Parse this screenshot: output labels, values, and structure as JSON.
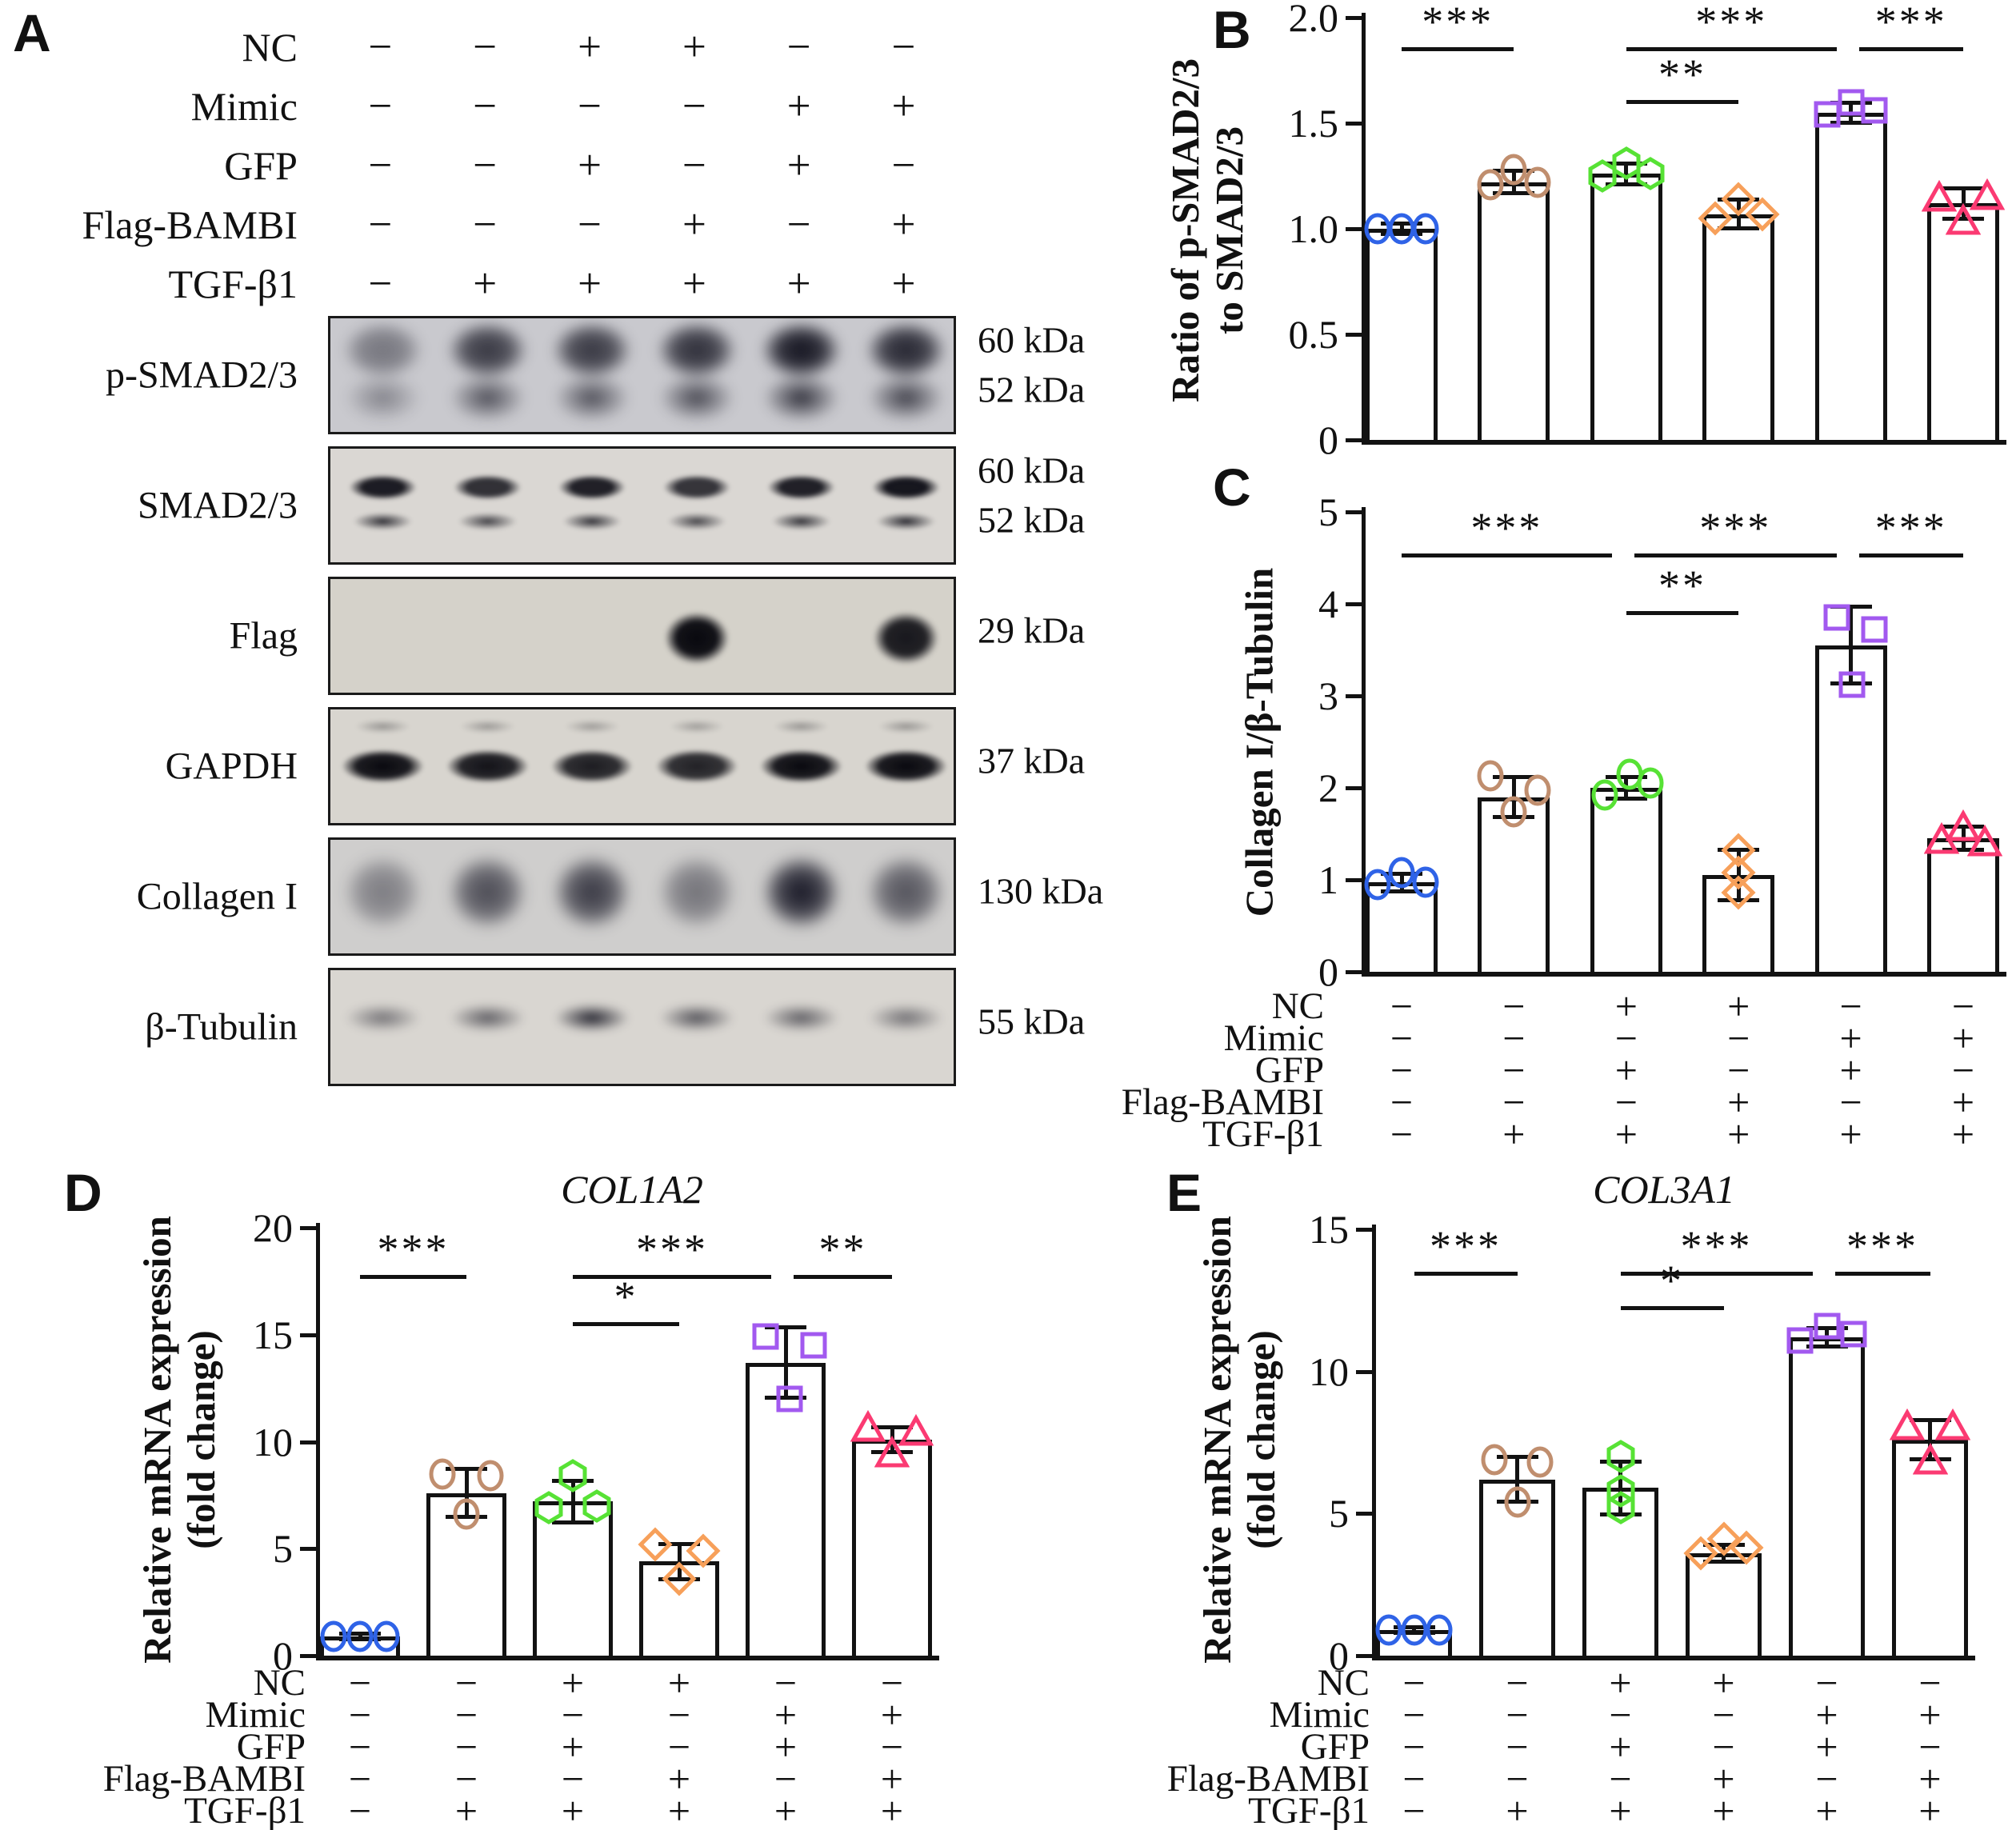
{
  "panel_letters": {
    "a": "A",
    "b": "B",
    "c": "C",
    "d": "D",
    "e": "E"
  },
  "conditions": {
    "rows": [
      {
        "label": "NC",
        "signs": [
          "−",
          "−",
          "+",
          "+",
          "−",
          "−"
        ]
      },
      {
        "label": "Mimic",
        "signs": [
          "−",
          "−",
          "−",
          "−",
          "+",
          "+"
        ]
      },
      {
        "label": "GFP",
        "signs": [
          "−",
          "−",
          "+",
          "−",
          "+",
          "−"
        ]
      },
      {
        "label": "Flag-BAMBI",
        "signs": [
          "−",
          "−",
          "−",
          "+",
          "−",
          "+"
        ]
      },
      {
        "label": "TGF-β1",
        "signs": [
          "−",
          "+",
          "+",
          "+",
          "+",
          "+"
        ]
      }
    ]
  },
  "western_blots": {
    "rows": [
      {
        "label": "p-SMAD2/3",
        "kda": [
          "60 kDa",
          "52 kDa"
        ],
        "style": "smear",
        "bg": "#c9c9ce",
        "lane_intensities": [
          0.45,
          0.8,
          0.8,
          0.85,
          1.0,
          0.9
        ]
      },
      {
        "label": "SMAD2/3",
        "kda": [
          "60 kDa",
          "52 kDa"
        ],
        "style": "double",
        "bg": "#dad7d3",
        "lane_intensities": [
          0.92,
          0.82,
          0.9,
          0.8,
          0.9,
          0.95
        ]
      },
      {
        "label": "Flag",
        "kda": [
          "29 kDa"
        ],
        "style": "blob",
        "bg": "#d5d2ca",
        "lane_intensities": [
          0,
          0,
          0,
          1.0,
          0,
          0.92
        ]
      },
      {
        "label": "GAPDH",
        "kda": [
          "37 kDa"
        ],
        "style": "single-thick",
        "bg": "#d8d5cf",
        "lane_intensities": [
          1.0,
          0.95,
          0.9,
          0.88,
          1.0,
          1.0
        ]
      },
      {
        "label": "Collagen I",
        "kda": [
          "130 kDa"
        ],
        "style": "smear-tall",
        "bg": "#cfcecd",
        "lane_intensities": [
          0.45,
          0.72,
          0.82,
          0.5,
          1.0,
          0.68
        ]
      },
      {
        "label": "β-Tubulin",
        "kda": [
          "55 kDa"
        ],
        "style": "single",
        "bg": "#d9d6d1",
        "lane_intensities": [
          0.5,
          0.62,
          0.92,
          0.68,
          0.62,
          0.52
        ]
      }
    ]
  },
  "chart_data": [
    {
      "id": "B",
      "type": "bar",
      "ylabel_lines": [
        "Ratio of p-SMAD2/3",
        "to SMAD2/3"
      ],
      "ylim": [
        0,
        2.0
      ],
      "yticks": [
        {
          "v": 0,
          "label": "0"
        },
        {
          "v": 0.5,
          "label": "0.5"
        },
        {
          "v": 1.0,
          "label": "1.0"
        },
        {
          "v": 1.5,
          "label": "1.5"
        },
        {
          "v": 2.0,
          "label": "2.0"
        }
      ],
      "bars": [
        {
          "mean": 1.0,
          "err": 0.025,
          "marker": "circle",
          "color": "#2f63e7",
          "points": [
            {
              "dx": -0.33,
              "v": 1.0
            },
            {
              "dx": 0,
              "v": 1.0
            },
            {
              "dx": 0.33,
              "v": 1.0
            }
          ]
        },
        {
          "mean": 1.22,
          "err": 0.055,
          "marker": "circle",
          "color": "#c08e6e",
          "points": [
            {
              "dx": -0.33,
              "v": 1.21
            },
            {
              "dx": 0,
              "v": 1.28
            },
            {
              "dx": 0.33,
              "v": 1.22
            }
          ]
        },
        {
          "mean": 1.26,
          "err": 0.05,
          "marker": "hexagon",
          "color": "#57e235",
          "points": [
            {
              "dx": -0.33,
              "v": 1.25
            },
            {
              "dx": 0,
              "v": 1.31
            },
            {
              "dx": 0.33,
              "v": 1.26
            }
          ]
        },
        {
          "mean": 1.07,
          "err": 0.07,
          "marker": "diamond",
          "color": "#f7a05a",
          "points": [
            {
              "dx": -0.33,
              "v": 1.05
            },
            {
              "dx": 0,
              "v": 1.14
            },
            {
              "dx": 0.33,
              "v": 1.07
            }
          ]
        },
        {
          "mean": 1.55,
          "err": 0.05,
          "marker": "square",
          "color": "#a259ef",
          "points": [
            {
              "dx": -0.33,
              "v": 1.54
            },
            {
              "dx": 0,
              "v": 1.6
            },
            {
              "dx": 0.33,
              "v": 1.56
            }
          ]
        },
        {
          "mean": 1.12,
          "err": 0.075,
          "marker": "triangle",
          "color": "#fb3a72",
          "points": [
            {
              "dx": -0.33,
              "v": 1.15
            },
            {
              "dx": 0,
              "v": 1.04
            },
            {
              "dx": 0.33,
              "v": 1.16
            }
          ]
        }
      ],
      "sig": [
        {
          "from": 0,
          "to": 1,
          "label": "***",
          "y": 1.86
        },
        {
          "from": 2,
          "to": 4,
          "label": "***",
          "y": 1.86
        },
        {
          "from": 4,
          "to": 5,
          "label": "***",
          "y": 1.86
        },
        {
          "from": 2,
          "to": 3,
          "label": "**",
          "y": 1.61
        }
      ],
      "show_conditions": false
    },
    {
      "id": "C",
      "type": "bar",
      "ylabel_lines": [
        "Collagen I/β-Tubulin"
      ],
      "ylim": [
        0,
        5
      ],
      "yticks": [
        {
          "v": 0,
          "label": "0"
        },
        {
          "v": 1,
          "label": "1"
        },
        {
          "v": 2,
          "label": "2"
        },
        {
          "v": 3,
          "label": "3"
        },
        {
          "v": 4,
          "label": "4"
        },
        {
          "v": 5,
          "label": "5"
        }
      ],
      "bars": [
        {
          "mean": 0.97,
          "err": 0.1,
          "marker": "circle",
          "color": "#2f63e7",
          "points": [
            {
              "dx": -0.33,
              "v": 0.95
            },
            {
              "dx": 0,
              "v": 1.08
            },
            {
              "dx": 0.33,
              "v": 0.97
            }
          ]
        },
        {
          "mean": 1.9,
          "err": 0.22,
          "marker": "circle",
          "color": "#c08e6e",
          "points": [
            {
              "dx": -0.33,
              "v": 2.13
            },
            {
              "dx": 0,
              "v": 1.74
            },
            {
              "dx": 0.33,
              "v": 1.97
            }
          ]
        },
        {
          "mean": 2.0,
          "err": 0.12,
          "marker": "circle",
          "color": "#57e235",
          "points": [
            {
              "dx": -0.3,
              "v": 1.92
            },
            {
              "dx": 0.05,
              "v": 2.15
            },
            {
              "dx": 0.33,
              "v": 2.05
            }
          ]
        },
        {
          "mean": 1.05,
          "err": 0.28,
          "marker": "diamond",
          "color": "#f7a05a",
          "points": [
            {
              "dx": 0,
              "v": 1.32
            },
            {
              "dx": 0,
              "v": 1.08
            },
            {
              "dx": 0,
              "v": 0.86
            }
          ]
        },
        {
          "mean": 3.55,
          "err": 0.42,
          "marker": "square",
          "color": "#a259ef",
          "points": [
            {
              "dx": -0.2,
              "v": 3.85
            },
            {
              "dx": 0.02,
              "v": 3.12
            },
            {
              "dx": 0.33,
              "v": 3.72
            }
          ]
        },
        {
          "mean": 1.45,
          "err": 0.13,
          "marker": "triangle",
          "color": "#fb3a72",
          "points": [
            {
              "dx": -0.3,
              "v": 1.44
            },
            {
              "dx": 0,
              "v": 1.58
            },
            {
              "dx": 0.3,
              "v": 1.42
            }
          ]
        }
      ],
      "sig": [
        {
          "from": 0,
          "to": 2,
          "label": "***",
          "y": 4.55
        },
        {
          "from": 2,
          "to": 4,
          "label": "***",
          "y": 4.55
        },
        {
          "from": 4,
          "to": 5,
          "label": "***",
          "y": 4.55
        },
        {
          "from": 2,
          "to": 3,
          "label": "**",
          "y": 3.92
        }
      ],
      "show_conditions": true
    },
    {
      "id": "D",
      "type": "bar",
      "title": "COL1A2",
      "ylabel_lines": [
        "Relative mRNA expression",
        "(fold change)"
      ],
      "ylim": [
        0,
        20
      ],
      "yticks": [
        {
          "v": 0,
          "label": "0"
        },
        {
          "v": 5,
          "label": "5"
        },
        {
          "v": 10,
          "label": "10"
        },
        {
          "v": 15,
          "label": "15"
        },
        {
          "v": 20,
          "label": "20"
        }
      ],
      "bars": [
        {
          "mean": 0.9,
          "err": 0.15,
          "marker": "circle",
          "color": "#2f63e7",
          "points": [
            {
              "dx": -0.33,
              "v": 0.9
            },
            {
              "dx": 0,
              "v": 0.9
            },
            {
              "dx": 0.33,
              "v": 0.9
            }
          ]
        },
        {
          "mean": 7.6,
          "err": 1.15,
          "marker": "circle",
          "color": "#c08e6e",
          "points": [
            {
              "dx": -0.3,
              "v": 8.5
            },
            {
              "dx": 0,
              "v": 6.6
            },
            {
              "dx": 0.3,
              "v": 8.4
            }
          ]
        },
        {
          "mean": 7.2,
          "err": 1.0,
          "marker": "hexagon",
          "color": "#57e235",
          "points": [
            {
              "dx": -0.3,
              "v": 6.9
            },
            {
              "dx": 0,
              "v": 8.4
            },
            {
              "dx": 0.3,
              "v": 7.0
            }
          ]
        },
        {
          "mean": 4.4,
          "err": 0.85,
          "marker": "diamond",
          "color": "#f7a05a",
          "points": [
            {
              "dx": -0.3,
              "v": 5.2
            },
            {
              "dx": 0,
              "v": 3.6
            },
            {
              "dx": 0.3,
              "v": 4.9
            }
          ]
        },
        {
          "mean": 13.7,
          "err": 1.65,
          "marker": "square",
          "color": "#a259ef",
          "points": [
            {
              "dx": -0.25,
              "v": 14.9
            },
            {
              "dx": 0.05,
              "v": 12.0
            },
            {
              "dx": 0.35,
              "v": 14.5
            }
          ]
        },
        {
          "mean": 10.1,
          "err": 0.6,
          "marker": "triangle",
          "color": "#fb3a72",
          "points": [
            {
              "dx": -0.3,
              "v": 10.7
            },
            {
              "dx": 0,
              "v": 9.5
            },
            {
              "dx": 0.3,
              "v": 10.5
            }
          ]
        }
      ],
      "sig": [
        {
          "from": 0,
          "to": 1,
          "label": "***",
          "y": 17.8
        },
        {
          "from": 2,
          "to": 4,
          "label": "***",
          "y": 17.8
        },
        {
          "from": 4,
          "to": 5,
          "label": "**",
          "y": 17.8
        },
        {
          "from": 2,
          "to": 3,
          "label": "*",
          "y": 15.6
        }
      ],
      "show_conditions": true
    },
    {
      "id": "E",
      "type": "bar",
      "title": "COL3A1",
      "ylabel_lines": [
        "Relative mRNA expression",
        "(fold change)"
      ],
      "ylim": [
        0,
        15
      ],
      "yticks": [
        {
          "v": 0,
          "label": "0"
        },
        {
          "v": 5,
          "label": "5"
        },
        {
          "v": 10,
          "label": "10"
        },
        {
          "v": 15,
          "label": "15"
        }
      ],
      "bars": [
        {
          "mean": 0.9,
          "err": 0.1,
          "marker": "circle",
          "color": "#2f63e7",
          "points": [
            {
              "dx": -0.33,
              "v": 0.9
            },
            {
              "dx": 0,
              "v": 0.9
            },
            {
              "dx": 0.33,
              "v": 0.9
            }
          ]
        },
        {
          "mean": 6.2,
          "err": 0.8,
          "marker": "circle",
          "color": "#c08e6e",
          "points": [
            {
              "dx": -0.3,
              "v": 6.9
            },
            {
              "dx": 0,
              "v": 5.4
            },
            {
              "dx": 0.3,
              "v": 6.8
            }
          ]
        },
        {
          "mean": 5.9,
          "err": 0.95,
          "marker": "hexagon",
          "color": "#57e235",
          "points": [
            {
              "dx": 0,
              "v": 7.0
            },
            {
              "dx": 0,
              "v": 5.8
            },
            {
              "dx": 0,
              "v": 5.2
            }
          ]
        },
        {
          "mean": 3.6,
          "err": 0.3,
          "marker": "diamond",
          "color": "#f7a05a",
          "points": [
            {
              "dx": -0.3,
              "v": 3.6
            },
            {
              "dx": 0,
              "v": 4.1
            },
            {
              "dx": 0.3,
              "v": 3.8
            }
          ]
        },
        {
          "mean": 11.2,
          "err": 0.35,
          "marker": "square",
          "color": "#a259ef",
          "points": [
            {
              "dx": -0.35,
              "v": 11.1
            },
            {
              "dx": 0,
              "v": 11.6
            },
            {
              "dx": 0.35,
              "v": 11.3
            }
          ]
        },
        {
          "mean": 7.6,
          "err": 0.7,
          "marker": "triangle",
          "color": "#fb3a72",
          "points": [
            {
              "dx": -0.3,
              "v": 8.1
            },
            {
              "dx": 0,
              "v": 6.9
            },
            {
              "dx": 0.3,
              "v": 8.1
            }
          ]
        }
      ],
      "sig": [
        {
          "from": 0,
          "to": 1,
          "label": "***",
          "y": 13.5
        },
        {
          "from": 2,
          "to": 4,
          "label": "***",
          "y": 13.5
        },
        {
          "from": 4,
          "to": 5,
          "label": "***",
          "y": 13.5
        },
        {
          "from": 2,
          "to": 3,
          "label": "*",
          "y": 12.3
        }
      ],
      "show_conditions": true
    }
  ]
}
